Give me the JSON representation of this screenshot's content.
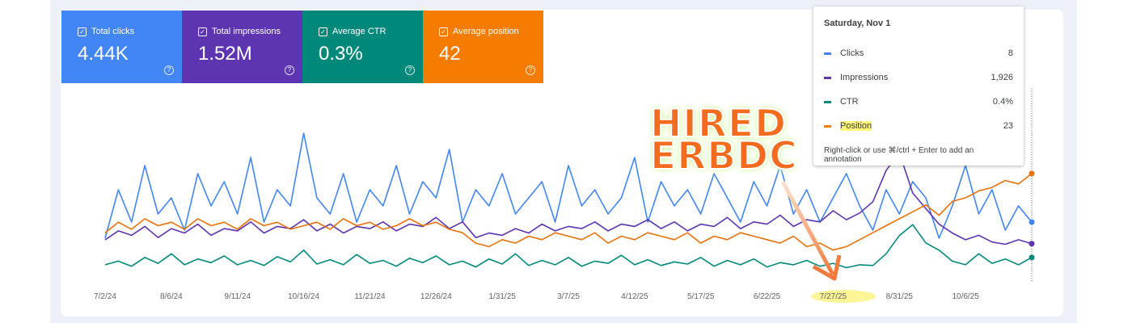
{
  "metrics": [
    {
      "label": "Total clicks",
      "value": "4.44K",
      "color": "#4285f4"
    },
    {
      "label": "Total impressions",
      "value": "1.52M",
      "color": "#5e35b1"
    },
    {
      "label": "Average CTR",
      "value": "0.3%",
      "color": "#00897b"
    },
    {
      "label": "Average position",
      "value": "42",
      "color": "#f57c00"
    }
  ],
  "tooltip": {
    "date": "Saturday, Nov 1",
    "rows": [
      {
        "label": "Clicks",
        "value": "8",
        "color": "#4285f4"
      },
      {
        "label": "Impressions",
        "value": "1,926",
        "color": "#5e35b1"
      },
      {
        "label": "CTR",
        "value": "0.4%",
        "color": "#00897b"
      },
      {
        "label": "Position",
        "value": "23",
        "color": "#f57c00"
      }
    ],
    "hint": "Right-click or use ⌘/ctrl + Enter to add an annotation"
  },
  "annotation": [
    "HIRED",
    "ERBDC"
  ],
  "chart_data": {
    "type": "line",
    "categories": [
      "7/2/24",
      null,
      null,
      null,
      null,
      "8/6/24",
      null,
      null,
      null,
      null,
      "9/11/24",
      null,
      null,
      null,
      null,
      "10/16/24",
      null,
      null,
      null,
      null,
      "11/21/24",
      null,
      null,
      null,
      null,
      "12/26/24",
      null,
      null,
      null,
      null,
      "1/31/25",
      null,
      null,
      null,
      null,
      "3/7/25",
      null,
      null,
      null,
      null,
      "4/12/25",
      null,
      null,
      null,
      null,
      "5/17/25",
      null,
      null,
      null,
      null,
      "6/22/25",
      null,
      null,
      null,
      null,
      "7/27/25",
      null,
      null,
      null,
      null,
      "8/31/25",
      null,
      null,
      null,
      null,
      "10/6/25",
      null,
      null,
      null,
      null,
      null
    ],
    "series": [
      {
        "name": "Clicks",
        "color": "#4285f4",
        "ylim": [
          0,
          23.5
        ],
        "values": [
          6,
          12,
          8,
          15,
          9,
          11,
          7,
          14,
          10,
          13,
          9,
          16,
          8,
          12,
          10,
          19,
          11,
          9,
          14,
          8,
          12,
          10,
          15,
          9,
          13,
          11,
          17,
          8,
          12,
          10,
          14,
          9,
          11,
          13,
          8,
          15,
          10,
          12,
          9,
          11,
          16,
          8,
          13,
          10,
          12,
          9,
          14,
          11,
          8,
          13,
          10,
          15,
          9,
          12,
          8,
          11,
          14,
          10,
          7,
          12,
          9,
          13,
          11,
          6,
          10,
          15,
          9,
          12,
          7,
          10,
          8
        ]
      },
      {
        "name": "Impressions",
        "color": "#5e35b1",
        "ylim": [
          0,
          8500
        ],
        "values": [
          2100,
          2500,
          2300,
          2700,
          2200,
          2600,
          2400,
          2800,
          2300,
          2600,
          2500,
          2900,
          2400,
          2700,
          2600,
          3000,
          2500,
          2800,
          2400,
          2700,
          2600,
          2900,
          2500,
          2800,
          2700,
          3100,
          2600,
          2900,
          2200,
          2400,
          2300,
          2600,
          2400,
          2800,
          2500,
          2700,
          2600,
          2900,
          2500,
          2800,
          2700,
          3000,
          2600,
          2900,
          2500,
          2800,
          2700,
          3100,
          2600,
          2900,
          2800,
          3200,
          2700,
          3000,
          2900,
          3400,
          3000,
          3300,
          3800,
          5200,
          6000,
          4200,
          3500,
          2800,
          2400,
          2100,
          2300,
          2000,
          1900,
          2100,
          1926
        ]
      },
      {
        "name": "CTR",
        "color": "#00897b",
        "ylim": [
          0,
          2.6
        ],
        "values": [
          0.3,
          0.35,
          0.28,
          0.4,
          0.32,
          0.45,
          0.3,
          0.38,
          0.33,
          0.42,
          0.3,
          0.36,
          0.29,
          0.41,
          0.34,
          0.5,
          0.31,
          0.37,
          0.3,
          0.44,
          0.32,
          0.36,
          0.28,
          0.39,
          0.33,
          0.42,
          0.3,
          0.35,
          0.27,
          0.38,
          0.31,
          0.45,
          0.29,
          0.36,
          0.3,
          0.4,
          0.28,
          0.35,
          0.32,
          0.43,
          0.3,
          0.37,
          0.29,
          0.34,
          0.31,
          0.4,
          0.28,
          0.36,
          0.3,
          0.38,
          0.27,
          0.33,
          0.3,
          0.36,
          0.28,
          0.32,
          0.26,
          0.3,
          0.29,
          0.45,
          0.7,
          0.85,
          0.6,
          0.5,
          0.35,
          0.3,
          0.45,
          0.32,
          0.38,
          0.3,
          0.4
        ]
      },
      {
        "name": "Position",
        "color": "#e8710a",
        "ylim": [
          55.5,
          1
        ],
        "values": [
          40,
          37,
          39,
          36,
          38,
          37,
          39,
          36,
          38,
          37,
          39,
          36,
          38,
          37,
          39,
          38,
          37,
          39,
          36,
          38,
          37,
          39,
          38,
          36,
          38,
          37,
          39,
          40,
          43,
          44,
          42,
          43,
          41,
          42,
          40,
          41,
          42,
          40,
          43,
          41,
          42,
          40,
          41,
          42,
          40,
          43,
          41,
          42,
          40,
          41,
          42,
          43,
          41,
          44,
          43,
          45,
          44,
          42,
          40,
          38,
          36,
          34,
          32,
          35,
          31,
          30,
          28,
          27,
          25,
          26,
          23
        ]
      }
    ]
  }
}
